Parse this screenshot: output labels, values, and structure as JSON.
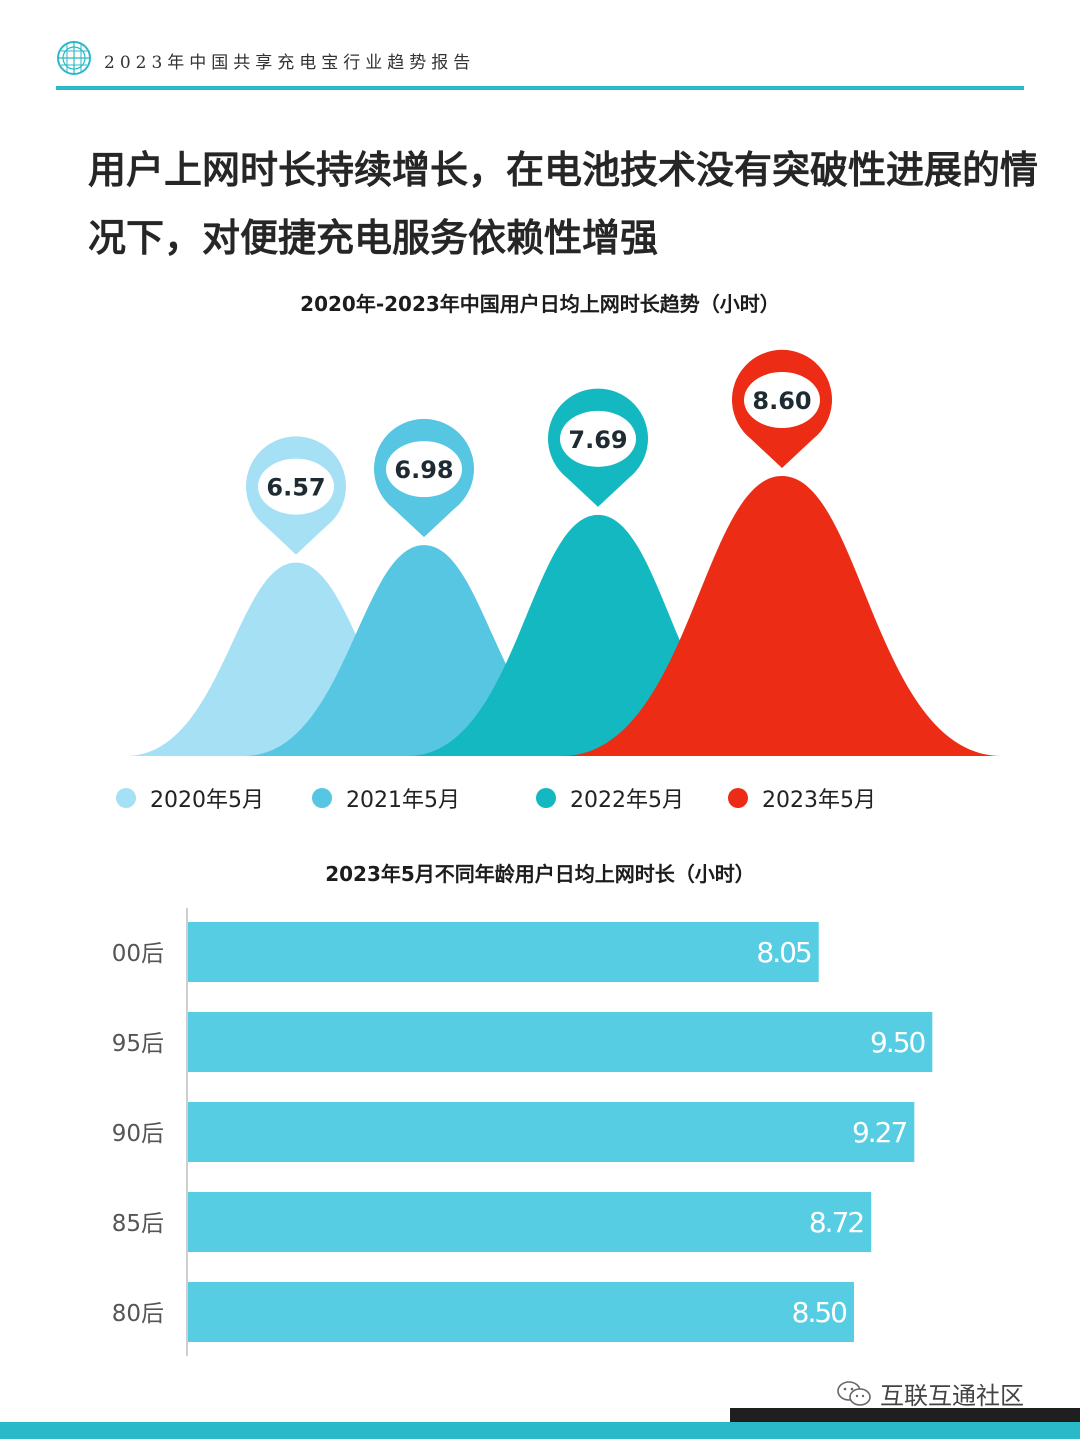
{
  "header": {
    "report_title": "2023年中国共享充电宝行业趋势报告",
    "accent_color": "#2ab9c8",
    "logo_icon": "globe-grid-icon"
  },
  "headline": "用户上网时长持续增长，在电池技术没有突破性进展的情况下，对便捷充电服务依赖性增强",
  "chart_data": [
    {
      "type": "area",
      "title": "2020年-2023年中国用户日均上网时长趋势（小时）",
      "categories": [
        "2020年5月",
        "2021年5月",
        "2022年5月",
        "2023年5月"
      ],
      "values": [
        6.57,
        6.98,
        7.69,
        8.6
      ],
      "value_labels": [
        "6.57",
        "6.98",
        "7.69",
        "8.60"
      ],
      "colors": [
        "#a6e0f4",
        "#56c6e2",
        "#14b8c0",
        "#ec2c14"
      ],
      "legend": "bottom",
      "grid": false
    },
    {
      "type": "bar",
      "orientation": "horizontal",
      "title": "2023年5月不同年龄用户日均上网时长（小时）",
      "categories": [
        "00后",
        "95后",
        "90后",
        "85后",
        "80后"
      ],
      "values": [
        8.05,
        9.5,
        9.27,
        8.72,
        8.5
      ],
      "value_labels": [
        "8.05",
        "9.50",
        "9.27",
        "8.72",
        "8.50"
      ],
      "color": "#56cde3",
      "xlim": [
        0,
        9.7
      ],
      "grid": false
    }
  ],
  "watermark": {
    "text": "互联互通社区",
    "icon": "wechat-icon"
  }
}
